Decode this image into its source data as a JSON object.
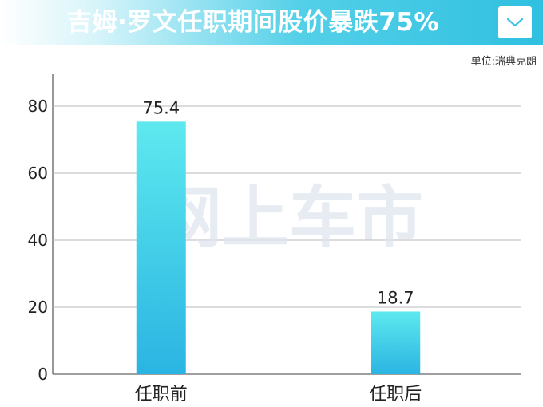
{
  "header": {
    "title": "吉姆·罗文任职期间股价暴跌75%",
    "dropdown_icon": "chevron-down-icon"
  },
  "unit_label": "单位:瑞典克朗",
  "watermark": "网上车市",
  "colors": {
    "bar_top": "#5ee9ef",
    "bar_bottom": "#2ab4e2",
    "header_accent": "#2fc0e0",
    "grid": "#b8b8b8"
  },
  "chart_data": {
    "type": "bar",
    "categories": [
      "任职前",
      "任职后"
    ],
    "values": [
      75.4,
      18.7
    ],
    "data_labels": [
      "75.4",
      "18.7"
    ],
    "yticks": [
      0,
      20,
      40,
      60,
      80
    ],
    "ylim": [
      0,
      80
    ],
    "grid": true,
    "legend": false
  }
}
